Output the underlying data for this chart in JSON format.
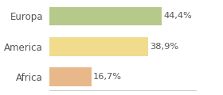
{
  "categories": [
    "Africa",
    "America",
    "Europa"
  ],
  "values": [
    16.7,
    38.9,
    44.4
  ],
  "labels": [
    "16,7%",
    "38,9%",
    "44,4%"
  ],
  "bar_colors": [
    "#e8b88a",
    "#f0dc8c",
    "#b5c98a"
  ],
  "background_color": "#ffffff",
  "xlim": [
    0,
    58
  ],
  "bar_height": 0.62,
  "label_fontsize": 8.2,
  "tick_fontsize": 8.5
}
